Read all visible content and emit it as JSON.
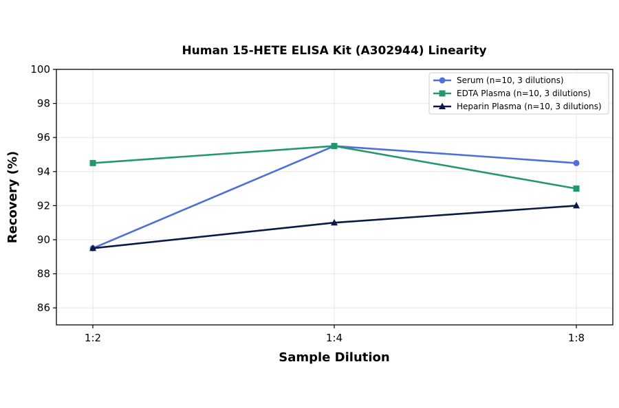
{
  "chart_data": {
    "type": "line",
    "title": "Human 15-HETE ELISA Kit (A302944) Linearity",
    "xlabel": "Sample Dilution",
    "ylabel": "Recovery (%)",
    "categories": [
      "1:2",
      "1:4",
      "1:8"
    ],
    "ylim": [
      85,
      100
    ],
    "yticks": [
      86,
      88,
      90,
      92,
      94,
      96,
      98,
      100
    ],
    "grid": true,
    "legend_position": "top-right",
    "series": [
      {
        "name": "Serum (n=10, 3 dilutions)",
        "values": [
          89.5,
          95.5,
          94.5
        ],
        "color": "#4f6fd6",
        "marker": "circle"
      },
      {
        "name": "EDTA Plasma (n=10, 3 dilutions)",
        "values": [
          94.5,
          95.5,
          93.0
        ],
        "color": "#24976e",
        "marker": "square"
      },
      {
        "name": "Heparin Plasma (n=10, 3 dilutions)",
        "values": [
          89.5,
          91.0,
          92.0
        ],
        "color": "#0b1a45",
        "marker": "triangle"
      }
    ]
  }
}
